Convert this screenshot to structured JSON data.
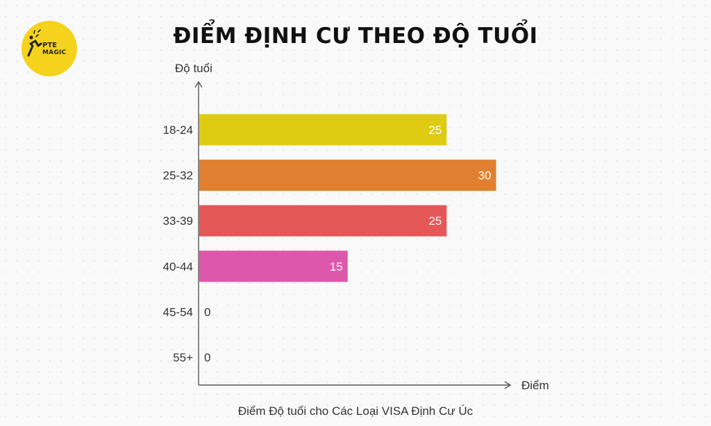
{
  "brand": {
    "line1": "PTE",
    "line2": "MAGIC",
    "color": "#f5d21b"
  },
  "chart_data": {
    "type": "bar",
    "orientation": "horizontal",
    "title": "ĐIỂM ĐỊNH CƯ THEO ĐỘ TUỔI",
    "ylabel": "Độ tuổi",
    "xlabel": "Điểm",
    "caption": "Điểm Độ tuổi cho Các Loại VISA Định Cư Úc",
    "categories": [
      "18-24",
      "25-32",
      "33-39",
      "40-44",
      "45-54",
      "55+"
    ],
    "values": [
      25,
      30,
      25,
      15,
      0,
      0
    ],
    "colors": [
      "#dfcc12",
      "#e08030",
      "#e35757",
      "#dd58aa",
      "#cccccc",
      "#cccccc"
    ],
    "xlim": [
      0,
      35
    ],
    "grid": false,
    "legend": "none"
  }
}
